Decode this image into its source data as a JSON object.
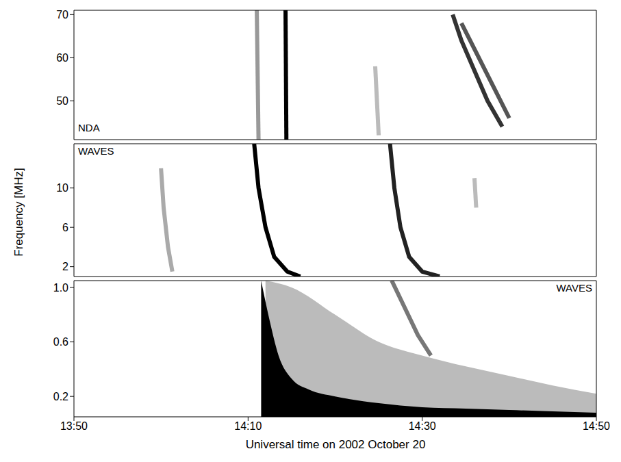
{
  "chart_data": [
    {
      "type": "line",
      "title": "NDA",
      "tick_labels": "y",
      "xlim": [
        830,
        890
      ],
      "xticks": [
        {
          "value": 830,
          "label": "13:50"
        },
        {
          "value": 850,
          "label": "14:10"
        },
        {
          "value": 870,
          "label": "14:30"
        },
        {
          "value": 890,
          "label": "14:50"
        }
      ],
      "ylim": [
        41,
        71
      ],
      "yticks": [
        50,
        60,
        70
      ],
      "series": [
        {
          "color": "#999999",
          "x": [
            851.0,
            851.2
          ],
          "values": [
            71,
            41
          ]
        },
        {
          "color": "#000000",
          "x": [
            854.3,
            854.4
          ],
          "values": [
            71,
            41
          ]
        },
        {
          "color": "#bbbbbb",
          "x": [
            864.6,
            865.0
          ],
          "values": [
            58,
            42
          ]
        },
        {
          "color": "#333333",
          "x": [
            873.5,
            874.5,
            876,
            877.5,
            879.2
          ],
          "values": [
            70,
            64,
            57,
            50,
            44
          ]
        },
        {
          "color": "#555555",
          "x": [
            874.5,
            876,
            878,
            880
          ],
          "values": [
            68,
            62,
            54,
            46
          ]
        }
      ]
    },
    {
      "type": "line",
      "title": "WAVES",
      "tick_labels": "y",
      "y_label": "Frequency [MHz]",
      "xlim": [
        830,
        890
      ],
      "xticks": [
        {
          "value": 830,
          "label": "13:50"
        },
        {
          "value": 850,
          "label": "14:10"
        },
        {
          "value": 870,
          "label": "14:30"
        },
        {
          "value": 890,
          "label": "14:50"
        }
      ],
      "ylim": [
        1,
        14.5
      ],
      "yticks": [
        2,
        6,
        10
      ],
      "series": [
        {
          "color": "#aaaaaa",
          "x": [
            840.0,
            840.3,
            840.8,
            841.3
          ],
          "values": [
            12,
            8,
            4,
            1.5
          ]
        },
        {
          "color": "#000000",
          "x": [
            850.7,
            851.2,
            852.0,
            853.0,
            854.5,
            856
          ],
          "values": [
            14.5,
            10,
            6,
            3,
            1.5,
            1
          ]
        },
        {
          "color": "#222222",
          "x": [
            866.3,
            866.8,
            867.5,
            868.5,
            870,
            872
          ],
          "values": [
            14.5,
            10,
            6,
            3,
            1.5,
            1
          ]
        },
        {
          "color": "#bbbbbb",
          "x": [
            876,
            876.2
          ],
          "values": [
            11,
            8
          ]
        }
      ]
    },
    {
      "type": "line",
      "title": "WAVES",
      "x_label": "Universal time on 2002 October 20",
      "xlim": [
        830,
        890
      ],
      "xticks": [
        {
          "value": 830,
          "label": "13:50"
        },
        {
          "value": 850,
          "label": "14:10"
        },
        {
          "value": 870,
          "label": "14:30"
        },
        {
          "value": 890,
          "label": "14:50"
        }
      ],
      "ylim": [
        0.05,
        1.05
      ],
      "yticks": [
        0.2,
        0.6,
        {
          "value": 1.0,
          "label": "1.0"
        }
      ],
      "series": [
        {
          "type": "area",
          "color": "#bbbbbb",
          "x": [
            852,
            855,
            860,
            865,
            870,
            875,
            880,
            885,
            890
          ],
          "values": [
            1.05,
            1.0,
            0.8,
            0.6,
            0.5,
            0.42,
            0.35,
            0.28,
            0.22
          ]
        },
        {
          "type": "area",
          "color": "#000000",
          "x": [
            851.5,
            852.5,
            853.5,
            855,
            857,
            860,
            865,
            870,
            875,
            880,
            885,
            890
          ],
          "values": [
            1.05,
            0.75,
            0.5,
            0.33,
            0.25,
            0.2,
            0.15,
            0.12,
            0.11,
            0.1,
            0.09,
            0.08
          ]
        },
        {
          "color": "#777777",
          "x": [
            866.5,
            868,
            869.5,
            871
          ],
          "values": [
            1.05,
            0.85,
            0.65,
            0.5
          ]
        }
      ]
    }
  ]
}
